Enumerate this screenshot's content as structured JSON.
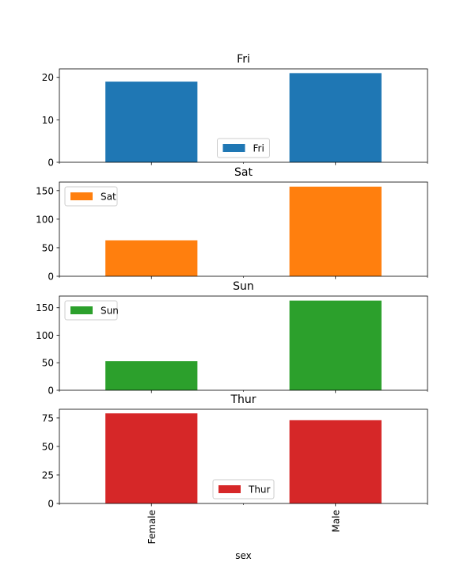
{
  "figure": {
    "xlabel": "sex"
  },
  "chart_data": [
    {
      "type": "bar",
      "title": "Fri",
      "categories": [
        "Female",
        "Male"
      ],
      "series": [
        {
          "name": "Fri",
          "values": [
            19,
            21
          ],
          "color": "#1f77b4"
        }
      ],
      "ylim": [
        0,
        22.0
      ],
      "yticks": [
        0,
        10,
        20
      ],
      "xlabel": "",
      "ylabel": "",
      "legend_position": "bottom-center",
      "grid": false
    },
    {
      "type": "bar",
      "title": "Sat",
      "categories": [
        "Female",
        "Male"
      ],
      "series": [
        {
          "name": "Sat",
          "values": [
            63,
            157
          ],
          "color": "#ff7f0e"
        }
      ],
      "ylim": [
        0,
        165.0
      ],
      "yticks": [
        0,
        50,
        100,
        150
      ],
      "xlabel": "",
      "ylabel": "",
      "legend_position": "upper-left",
      "grid": false
    },
    {
      "type": "bar",
      "title": "Sun",
      "categories": [
        "Female",
        "Male"
      ],
      "series": [
        {
          "name": "Sun",
          "values": [
            53,
            163
          ],
          "color": "#2ca02c"
        }
      ],
      "ylim": [
        0,
        171.2
      ],
      "yticks": [
        0,
        50,
        100,
        150
      ],
      "xlabel": "",
      "ylabel": "",
      "legend_position": "upper-left",
      "grid": false
    },
    {
      "type": "bar",
      "title": "Thur",
      "categories": [
        "Female",
        "Male"
      ],
      "series": [
        {
          "name": "Thur",
          "values": [
            79,
            73
          ],
          "color": "#d62728"
        }
      ],
      "ylim": [
        0,
        82.6
      ],
      "yticks": [
        0,
        25,
        50,
        75
      ],
      "xlabel": "sex",
      "ylabel": "",
      "legend_position": "bottom-center",
      "grid": false
    }
  ]
}
